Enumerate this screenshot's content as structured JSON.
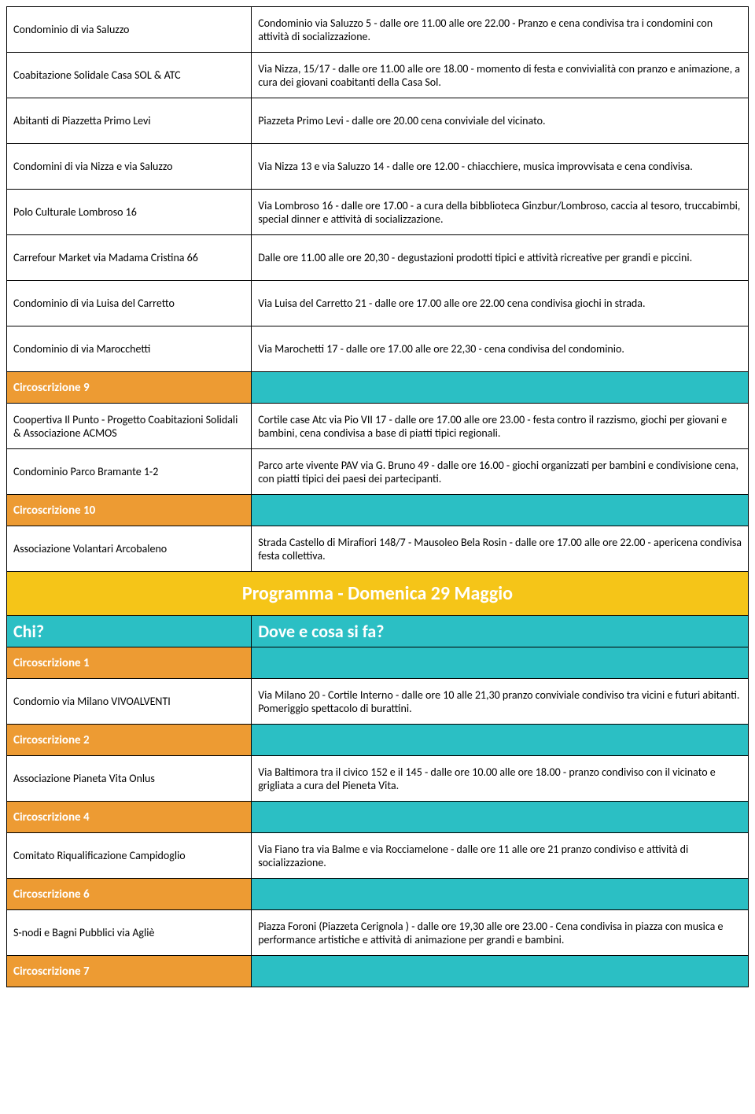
{
  "colors": {
    "orange": "#ed9b33",
    "teal": "#2bbfc4",
    "yellow": "#f5c518",
    "border": "#000000",
    "text": "#000000",
    "white": "#ffffff"
  },
  "typography": {
    "body_fontsize": 14,
    "section_fontsize": 15,
    "header_fontsize": 22,
    "title_fontsize": 24,
    "font_family": "Calibri"
  },
  "layout": {
    "col_left_width_pct": 33,
    "col_right_width_pct": 67,
    "row_normal_height": 58,
    "row_section_height": 40,
    "row_title_height": 56
  },
  "rows": [
    {
      "type": "normal",
      "who": "Condominio di via Saluzzo",
      "what": "Condominio via Saluzzo 5  - dalle ore 11.00 alle ore 22.00 - Pranzo e cena condivisa tra i condomini con attività di socializzazione."
    },
    {
      "type": "normal",
      "who": "Coabitazione Solidale Casa SOL & ATC",
      "what": "Via Nizza, 15/17 - dalle ore 11.00 alle ore 18.00 -  momento di festa e convivialità  con pranzo e animazione, a cura dei giovani coabitanti della  Casa Sol."
    },
    {
      "type": "normal",
      "who": "Abitanti di Piazzetta Primo Levi",
      "what": "Piazzeta Primo Levi - dalle ore 20.00  cena conviviale del vicinato."
    },
    {
      "type": "normal",
      "who": "Condomini di via Nizza e via Saluzzo",
      "what": "Via Nizza 13 e via Saluzzo 14 - dalle ore 12.00 - chiacchiere, musica improvvisata e cena condivisa."
    },
    {
      "type": "normal",
      "who": "Polo Culturale Lombroso 16",
      "what": "Via Lombroso 16 - dalle ore 17.00  -  a cura della bibblioteca Ginzbur/Lombroso, caccia al tesoro, truccabimbi, special dinner e attività di socializzazione."
    },
    {
      "type": "normal",
      "who": "Carrefour Market via Madama Cristina 66",
      "what": "Dalle ore 11.00 alle ore 20,30 - degustazioni prodotti tipici e attività ricreative per grandi e piccini."
    },
    {
      "type": "normal",
      "who": "Condominio di via Luisa del Carretto",
      "what": "Via Luisa del Carretto 21 - dalle ore 17.00 alle ore 22.00 cena condivisa  giochi in strada."
    },
    {
      "type": "normal",
      "who": "Condominio di via Marocchetti",
      "what": "Via Marochetti 17 - dalle ore 17.00 alle ore 22,30 - cena condivisa del condominio."
    },
    {
      "type": "section",
      "label": "Circoscrizione 9"
    },
    {
      "type": "normal",
      "who": "Coopertiva Il Punto - Progetto Coabitazioni Solidali & Associazione ACMOS",
      "what": "Cortile case Atc via Pio VII 17 - dalle ore 17.00 alle ore 23.00 - festa contro il razzismo, giochi per giovani e bambini, cena condivisa a base di piatti tipici regionali."
    },
    {
      "type": "normal",
      "who": "Condominio Parco Bramante 1-2",
      "what": "Parco arte vivente PAV via G. Bruno 49 - dalle ore 16.00 -  giochi organizzati per bambini e condivisione cena, con piatti tipici dei paesi dei partecipanti."
    },
    {
      "type": "section",
      "label": "Circoscrizione 10"
    },
    {
      "type": "normal",
      "who": "Associazione Volantari Arcobaleno",
      "what": "Strada Castello di Mirafiori 148/7 - Mausoleo Bela Rosin - dalle ore 17.00 alle ore 22.00 - apericena condivisa festa collettiva."
    },
    {
      "type": "title",
      "label": "Programma - Domenica 29 Maggio"
    },
    {
      "type": "header",
      "left": "Chi?",
      "right": "Dove e cosa si fa?"
    },
    {
      "type": "section",
      "label": "Circoscrizione  1"
    },
    {
      "type": "normal",
      "who": "Condomio via Milano VIVOALVENTI",
      "what": "Via Milano 20 - Cortile Interno - dalle ore 10 alle 21,30 pranzo conviviale condiviso tra vicini e futuri abitanti. Pomeriggio spettacolo di burattini."
    },
    {
      "type": "section",
      "label": "Circoscrizione 2"
    },
    {
      "type": "normal",
      "who": "Associazione Pianeta Vita Onlus",
      "what": "Via Baltimora tra il civico 152 e il 145 - dalle ore 10.00 alle ore 18.00 - pranzo condiviso con il vicinato e grigliata a cura del Pieneta Vita."
    },
    {
      "type": "section",
      "label": "Circoscrizione  4"
    },
    {
      "type": "normal",
      "who": "Comitato Riqualificazione Campidoglio",
      "what": "Via Fiano tra via Balme e via Rocciamelone - dalle ore 11 alle ore 21 pranzo condiviso e attività di socializzazione."
    },
    {
      "type": "section",
      "label": "Circoscrizione 6"
    },
    {
      "type": "normal",
      "who": "S-nodi e Bagni Pubblici via Agliè",
      "what": "Piazza Foroni (Piazzeta Cerignola ) - dalle ore 19,30 alle ore 23.00 - Cena condivisa in piazza con musica e performance artistiche e attività di animazione per grandi e bambini."
    },
    {
      "type": "section",
      "label": "Circoscrizione 7"
    }
  ]
}
